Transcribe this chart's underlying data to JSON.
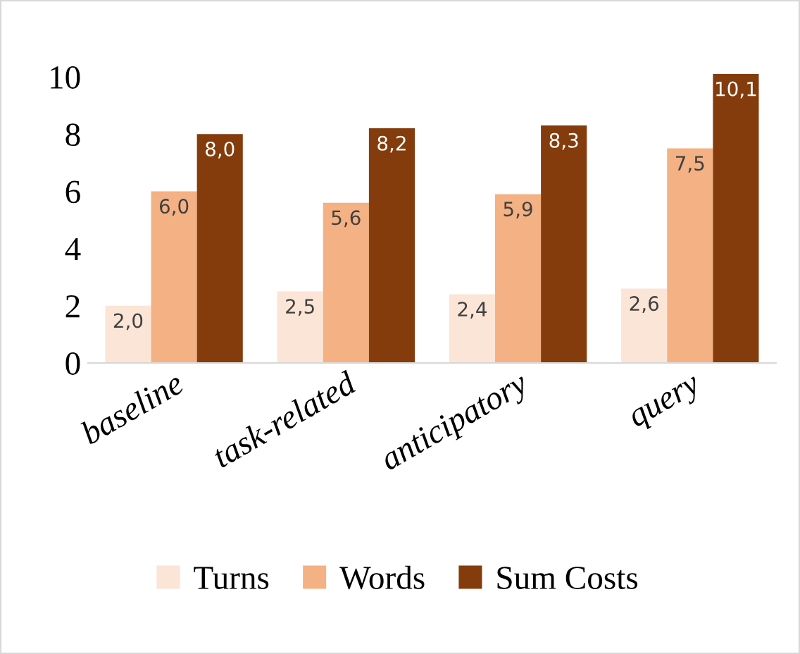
{
  "chart_data": {
    "type": "bar",
    "categories": [
      "baseline",
      "task-related",
      "anticipatory",
      "query"
    ],
    "series": [
      {
        "name": "Turns",
        "color": "#fbe5d6",
        "values": [
          2.0,
          2.5,
          2.4,
          2.6
        ],
        "value_labels": [
          "2,0",
          "2,5",
          "2,4",
          "2,6"
        ]
      },
      {
        "name": "Words",
        "color": "#f4b183",
        "values": [
          6.0,
          5.6,
          5.9,
          7.5
        ],
        "value_labels": [
          "6,0",
          "5,6",
          "5,9",
          "7,5"
        ]
      },
      {
        "name": "Sum Costs",
        "color": "#843c0c",
        "values": [
          8.0,
          8.2,
          8.3,
          10.1
        ],
        "value_labels": [
          "8,0",
          "8,2",
          "8,3",
          "10,1"
        ]
      }
    ],
    "ylim": [
      0,
      10.4
    ],
    "yticks": [
      0,
      2,
      4,
      6,
      8,
      10
    ],
    "grid": false,
    "legend": "bottom"
  }
}
